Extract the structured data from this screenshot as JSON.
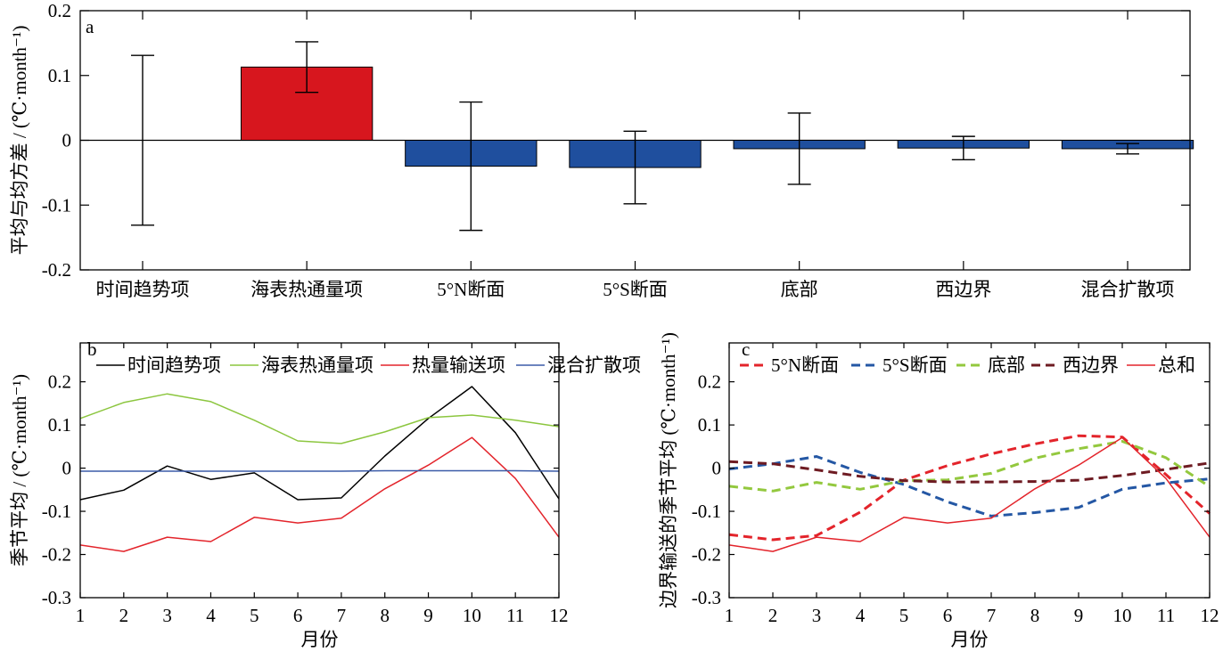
{
  "chart_data": [
    {
      "panel_label": "a",
      "type": "bar",
      "categories": [
        "时间趋势项",
        "海表热通量项",
        "5°N断面",
        "5°S断面",
        "底部",
        "西边界",
        "混合扩散项"
      ],
      "values": [
        0.0,
        0.113,
        -0.04,
        -0.042,
        -0.013,
        -0.012,
        -0.013
      ],
      "errors": [
        0.131,
        0.039,
        0.099,
        0.056,
        0.055,
        0.018,
        0.008
      ],
      "bar_colors": [
        "#1f4f9e",
        "#d7161e",
        "#1f4f9e",
        "#1f4f9e",
        "#1f4f9e",
        "#1f4f9e",
        "#1f4f9e"
      ],
      "ylabel": "平均与均方差 / (℃·month⁻¹)",
      "ylim": [
        -0.2,
        0.2
      ],
      "yticks": [
        -0.2,
        -0.1,
        0,
        0.1,
        0.2
      ],
      "grid": false
    },
    {
      "panel_label": "b",
      "type": "line",
      "x": [
        1,
        2,
        3,
        4,
        5,
        6,
        7,
        8,
        9,
        10,
        11,
        12
      ],
      "xlabel": "月份",
      "ylabel": "季节平均 / (℃·month⁻¹)",
      "xlim": [
        1,
        12
      ],
      "ylim": [
        -0.3,
        0.29
      ],
      "yticks": [
        -0.3,
        -0.2,
        -0.1,
        0,
        0.1,
        0.2
      ],
      "legend": "top",
      "grid": false,
      "series": [
        {
          "name": "时间趋势项",
          "color": "#000000",
          "style": "solid",
          "values": [
            -0.073,
            -0.051,
            0.005,
            -0.026,
            -0.011,
            -0.073,
            -0.069,
            0.028,
            0.115,
            0.189,
            0.082,
            -0.071
          ]
        },
        {
          "name": "海表热通量项",
          "color": "#8cc63f",
          "style": "solid",
          "values": [
            0.115,
            0.152,
            0.172,
            0.154,
            0.111,
            0.063,
            0.057,
            0.084,
            0.117,
            0.123,
            0.111,
            0.096
          ]
        },
        {
          "name": "热量输送项",
          "color": "#e3242b",
          "style": "solid",
          "values": [
            -0.178,
            -0.193,
            -0.16,
            -0.17,
            -0.114,
            -0.127,
            -0.116,
            -0.048,
            0.007,
            0.071,
            -0.024,
            -0.16
          ]
        },
        {
          "name": "混合扩散项",
          "color": "#3b5ba8",
          "style": "solid",
          "values": [
            -0.007,
            -0.007,
            -0.007,
            -0.007,
            -0.007,
            -0.007,
            -0.007,
            -0.006,
            -0.006,
            -0.006,
            -0.006,
            -0.007
          ]
        }
      ]
    },
    {
      "panel_label": "c",
      "type": "line",
      "x": [
        1,
        2,
        3,
        4,
        5,
        6,
        7,
        8,
        9,
        10,
        11,
        12
      ],
      "xlabel": "月份",
      "ylabel": "边界输送的季节平均 (℃·month⁻¹)",
      "xlim": [
        1,
        12
      ],
      "ylim": [
        -0.3,
        0.29
      ],
      "yticks": [
        -0.3,
        -0.2,
        -0.1,
        0,
        0.1,
        0.2
      ],
      "legend": "top",
      "grid": false,
      "series": [
        {
          "name": "5°N断面",
          "color": "#e3242b",
          "style": "dashed",
          "values": [
            -0.154,
            -0.166,
            -0.156,
            -0.102,
            -0.028,
            0.006,
            0.033,
            0.056,
            0.075,
            0.072,
            -0.015,
            -0.105
          ]
        },
        {
          "name": "5°S断面",
          "color": "#2457a4",
          "style": "dashed",
          "values": [
            -0.002,
            0.01,
            0.027,
            -0.01,
            -0.038,
            -0.078,
            -0.111,
            -0.103,
            -0.091,
            -0.049,
            -0.034,
            -0.025
          ]
        },
        {
          "name": "底部",
          "color": "#93c83e",
          "style": "dashed",
          "values": [
            -0.042,
            -0.053,
            -0.033,
            -0.049,
            -0.029,
            -0.027,
            -0.012,
            0.023,
            0.045,
            0.062,
            0.024,
            -0.043
          ]
        },
        {
          "name": "西边界",
          "color": "#6e1b22",
          "style": "dashed",
          "values": [
            0.015,
            0.01,
            -0.004,
            -0.019,
            -0.029,
            -0.032,
            -0.032,
            -0.031,
            -0.028,
            -0.017,
            -0.003,
            0.012
          ]
        },
        {
          "name": "总和",
          "color": "#e3242b",
          "style": "solid",
          "values": [
            -0.178,
            -0.193,
            -0.16,
            -0.17,
            -0.114,
            -0.127,
            -0.116,
            -0.048,
            0.007,
            0.071,
            -0.024,
            -0.16
          ]
        }
      ]
    }
  ]
}
